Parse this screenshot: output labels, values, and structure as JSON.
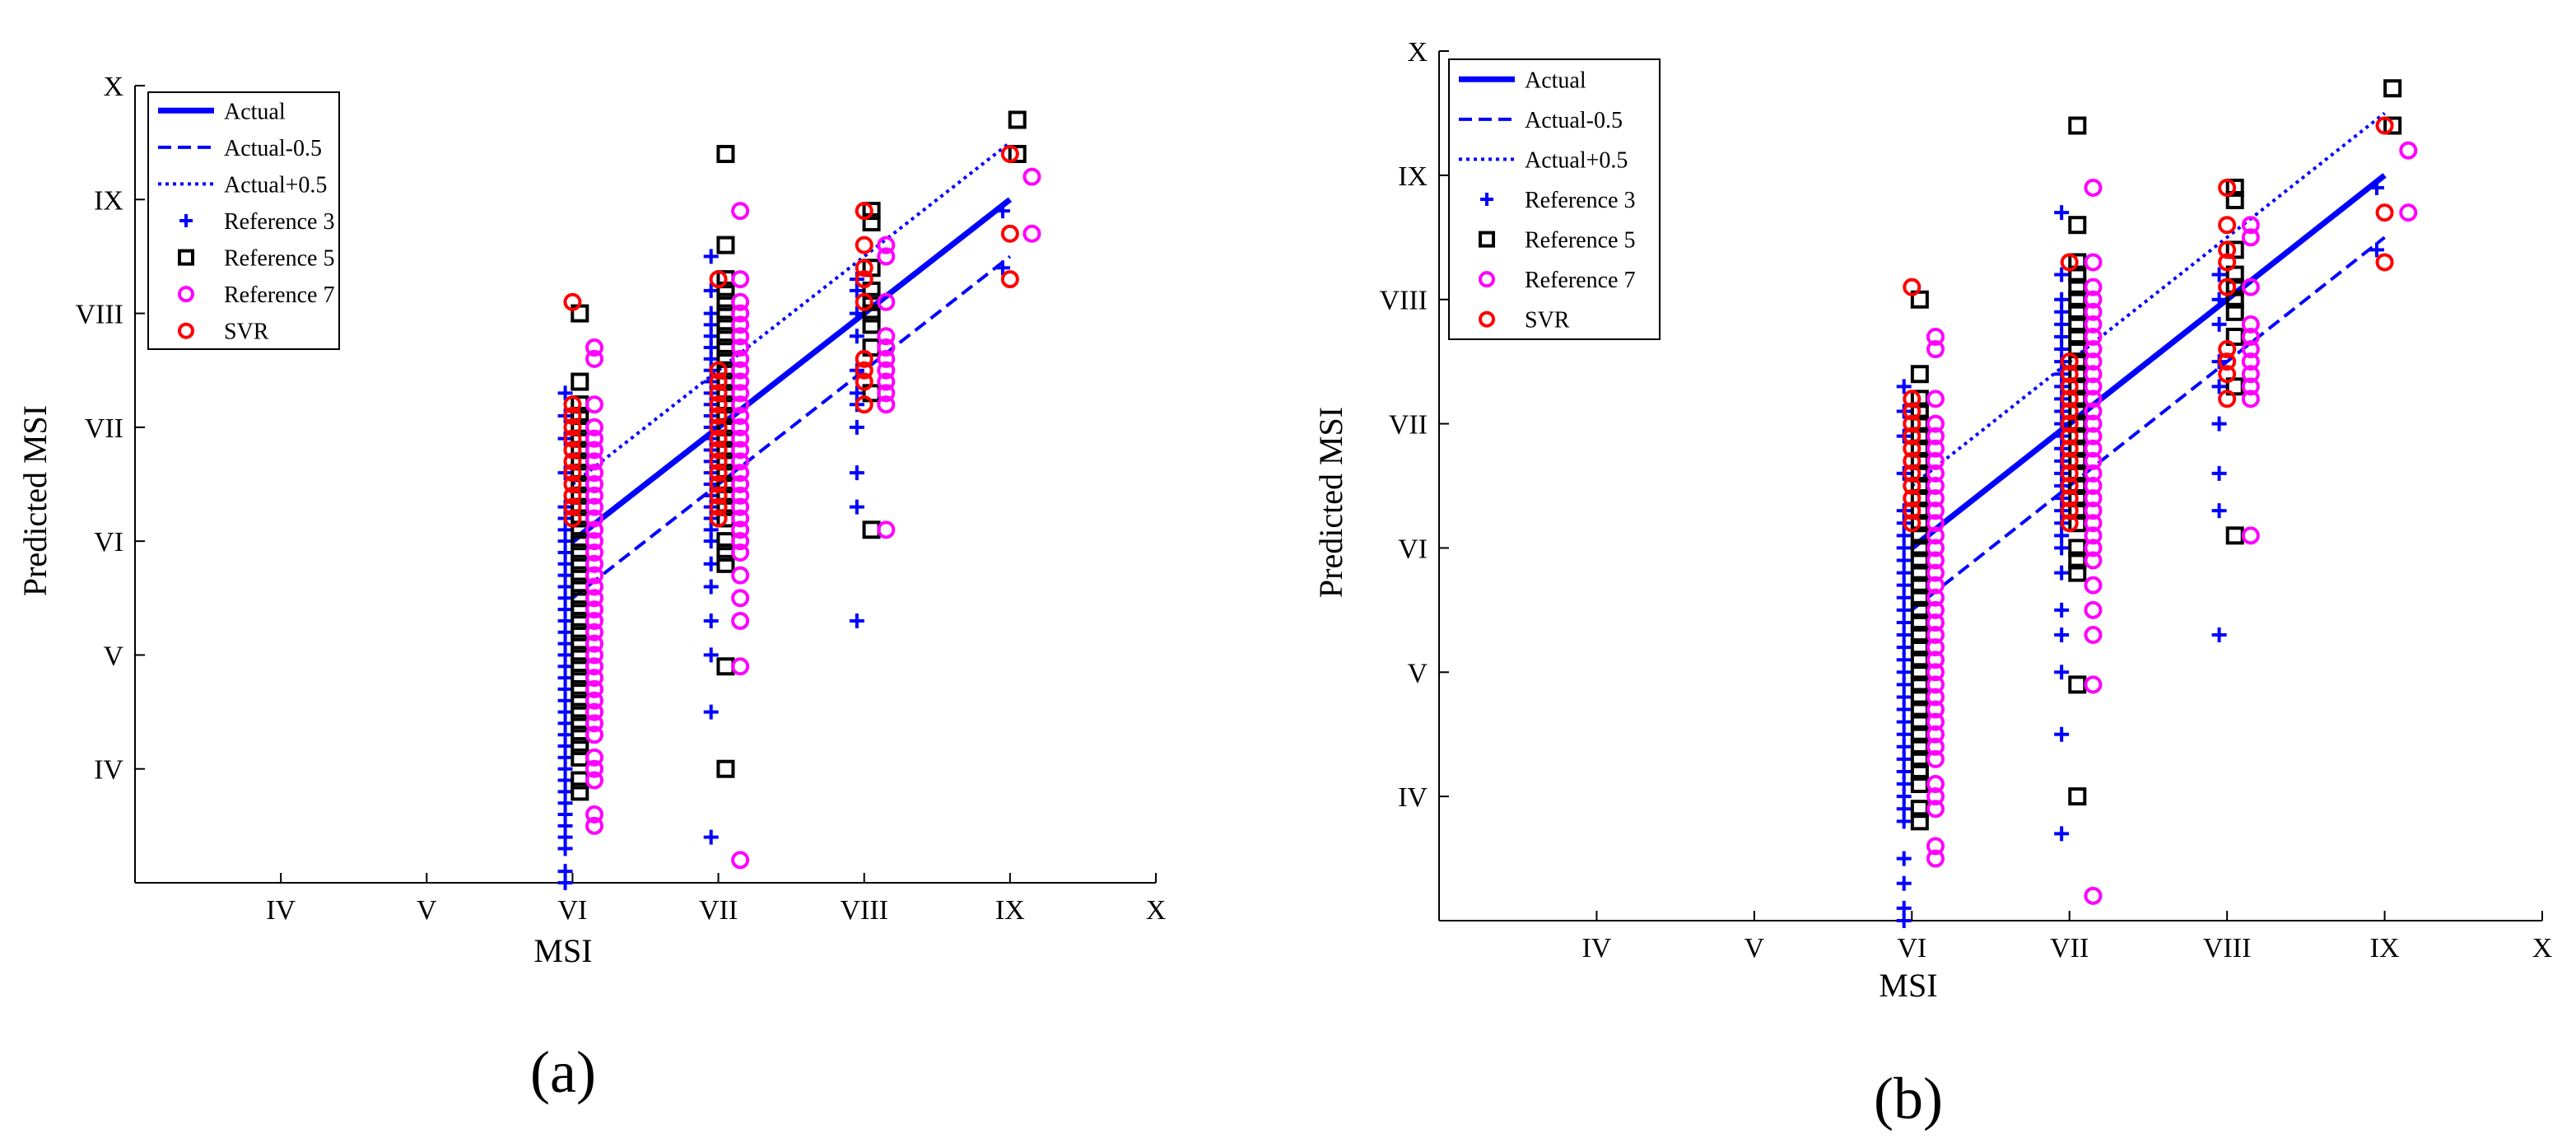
{
  "figure": {
    "panels": [
      "(a)",
      "(b)"
    ]
  },
  "colors": {
    "actual": "#0000ff",
    "ref3": "#0000ff",
    "ref5": "#000000",
    "ref7": "#ff00ff",
    "svr": "#ff0000"
  },
  "chart_data": [
    {
      "type": "scatter",
      "panel_label": "(a)",
      "xlabel": "MSI",
      "ylabel": "Predicted MSI",
      "xlim": [
        3,
        10
      ],
      "ylim": [
        3,
        10
      ],
      "ticks": [
        {
          "value": 4,
          "label": "IV"
        },
        {
          "value": 5,
          "label": "V"
        },
        {
          "value": 6,
          "label": "VI"
        },
        {
          "value": 7,
          "label": "VII"
        },
        {
          "value": 8,
          "label": "VIII"
        },
        {
          "value": 9,
          "label": "IX"
        },
        {
          "value": 10,
          "label": "X"
        }
      ],
      "legend": {
        "position": "top-left",
        "entries": [
          "Actual",
          "Actual-0.5",
          "Actual+0.5",
          "Reference 3",
          "Reference 5",
          "Reference 7",
          "SVR"
        ]
      },
      "lines": [
        {
          "name": "Actual",
          "x": [
            6,
            9
          ],
          "y": [
            6,
            9
          ],
          "style": "solid"
        },
        {
          "name": "Actual-0.5",
          "x": [
            6,
            9
          ],
          "y": [
            5.5,
            8.5
          ],
          "style": "dashed"
        },
        {
          "name": "Actual+0.5",
          "x": [
            6,
            9
          ],
          "y": [
            6.5,
            9.5
          ],
          "style": "dotted"
        }
      ],
      "series": [
        {
          "name": "Reference 3",
          "marker": "plus",
          "x_offset": -0.05,
          "groups": [
            {
              "x": 6,
              "y": [
                6.3,
                6.2,
                6.1,
                6.0,
                5.9,
                5.8,
                5.7,
                5.6,
                5.5,
                5.4,
                5.3,
                5.2,
                5.1,
                5.0,
                4.9,
                4.8,
                4.7,
                4.6,
                4.5,
                4.4,
                4.3,
                4.2,
                4.1,
                4.0,
                3.9,
                3.8,
                3.7,
                3.6,
                3.5,
                3.4,
                3.3,
                3.1,
                3.0,
                6.6,
                6.9,
                7.1,
                7.3
              ]
            },
            {
              "x": 7,
              "y": [
                7.0,
                7.1,
                7.2,
                7.3,
                7.4,
                7.5,
                7.6,
                7.7,
                7.8,
                7.9,
                8.0,
                8.2,
                8.5,
                6.9,
                6.8,
                6.7,
                6.6,
                6.5,
                6.4,
                6.3,
                6.2,
                6.1,
                6.0,
                5.8,
                5.6,
                5.3,
                5.0,
                4.5,
                3.4
              ]
            },
            {
              "x": 8,
              "y": [
                8.3,
                8.2,
                8.0,
                7.8,
                7.5,
                7.3,
                7.2,
                7.0,
                6.6,
                6.3,
                5.3
              ]
            },
            {
              "x": 9,
              "y": [
                8.9,
                8.4
              ]
            }
          ]
        },
        {
          "name": "Reference 5",
          "marker": "square",
          "x_offset": 0.05,
          "groups": [
            {
              "x": 6,
              "y": [
                8.0,
                7.4,
                7.2,
                7.1,
                7.0,
                6.9,
                6.8,
                6.7,
                6.6,
                6.5,
                6.4,
                6.3,
                6.2,
                6.1,
                6.0,
                5.9,
                5.8,
                5.7,
                5.6,
                5.5,
                5.4,
                5.3,
                5.2,
                5.1,
                5.0,
                4.9,
                4.8,
                4.7,
                4.6,
                4.5,
                4.4,
                4.3,
                4.2,
                4.1,
                3.9,
                3.8
              ]
            },
            {
              "x": 7,
              "y": [
                9.4,
                8.6,
                8.3,
                8.2,
                8.1,
                8.0,
                7.9,
                7.8,
                7.7,
                7.6,
                7.5,
                7.4,
                7.3,
                7.2,
                7.1,
                7.0,
                6.9,
                6.8,
                6.7,
                6.6,
                6.5,
                6.4,
                6.3,
                6.2,
                6.0,
                5.9,
                5.8,
                4.9,
                4.0
              ]
            },
            {
              "x": 8,
              "y": [
                8.9,
                8.8,
                8.4,
                8.2,
                8.1,
                8.0,
                7.9,
                7.7,
                7.3,
                6.1
              ]
            },
            {
              "x": 9,
              "y": [
                9.7,
                9.4
              ]
            }
          ]
        },
        {
          "name": "Reference 7",
          "marker": "circle",
          "x_offset": 0.15,
          "groups": [
            {
              "x": 6,
              "y": [
                7.7,
                7.6,
                7.2,
                7.0,
                6.9,
                6.8,
                6.7,
                6.6,
                6.5,
                6.4,
                6.3,
                6.2,
                6.1,
                6.0,
                5.9,
                5.8,
                5.7,
                5.6,
                5.5,
                5.4,
                5.3,
                5.2,
                5.1,
                5.0,
                4.9,
                4.8,
                4.7,
                4.6,
                4.5,
                4.4,
                4.3,
                4.1,
                4.0,
                3.9,
                3.6,
                3.5
              ]
            },
            {
              "x": 7,
              "y": [
                8.9,
                8.3,
                8.1,
                8.0,
                7.9,
                7.8,
                7.7,
                7.6,
                7.5,
                7.4,
                7.3,
                7.2,
                7.1,
                7.0,
                6.9,
                6.8,
                6.7,
                6.6,
                6.5,
                6.4,
                6.3,
                6.2,
                6.1,
                6.0,
                5.9,
                5.7,
                5.5,
                5.3,
                4.9,
                3.2
              ]
            },
            {
              "x": 8,
              "y": [
                8.6,
                8.5,
                8.1,
                7.8,
                7.7,
                7.6,
                7.5,
                7.4,
                7.3,
                7.2,
                6.1
              ]
            },
            {
              "x": 9,
              "y": [
                9.2,
                8.7
              ]
            }
          ]
        },
        {
          "name": "SVR",
          "marker": "circle",
          "x_offset": 0.0,
          "groups": [
            {
              "x": 6,
              "y": [
                8.1,
                7.2,
                7.1,
                7.0,
                6.9,
                6.8,
                6.7,
                6.6,
                6.5,
                6.4,
                6.3,
                6.2
              ]
            },
            {
              "x": 7,
              "y": [
                8.3,
                7.5,
                7.4,
                7.3,
                7.2,
                7.1,
                7.0,
                6.9,
                6.8,
                6.7,
                6.6,
                6.5,
                6.4,
                6.3,
                6.2
              ]
            },
            {
              "x": 8,
              "y": [
                8.9,
                8.6,
                8.4,
                8.3,
                8.1,
                7.6,
                7.5,
                7.4,
                7.2
              ]
            },
            {
              "x": 9,
              "y": [
                9.4,
                8.7,
                8.3
              ]
            }
          ]
        }
      ]
    },
    {
      "type": "scatter",
      "panel_label": "(b)",
      "xlabel": "MSI",
      "ylabel": "Predicted MSI",
      "xlim": [
        3,
        10
      ],
      "ylim": [
        3,
        10
      ],
      "ticks": [
        {
          "value": 4,
          "label": "IV"
        },
        {
          "value": 5,
          "label": "V"
        },
        {
          "value": 6,
          "label": "VI"
        },
        {
          "value": 7,
          "label": "VII"
        },
        {
          "value": 8,
          "label": "VIII"
        },
        {
          "value": 9,
          "label": "IX"
        },
        {
          "value": 10,
          "label": "X"
        }
      ],
      "legend": {
        "position": "top-left",
        "entries": [
          "Actual",
          "Actual-0.5",
          "Actual+0.5",
          "Reference 3",
          "Reference 5",
          "Reference 7",
          "SVR"
        ]
      },
      "lines": [
        {
          "name": "Actual",
          "x": [
            6,
            9
          ],
          "y": [
            6,
            9
          ],
          "style": "solid"
        },
        {
          "name": "Actual-0.5",
          "x": [
            6,
            9
          ],
          "y": [
            5.5,
            8.5
          ],
          "style": "dashed"
        },
        {
          "name": "Actual+0.5",
          "x": [
            6,
            9
          ],
          "y": [
            6.5,
            9.5
          ],
          "style": "dotted"
        }
      ],
      "series": [
        {
          "name": "Reference 3",
          "marker": "plus",
          "x_offset": -0.05,
          "groups": [
            {
              "x": 6,
              "y": [
                7.3,
                7.1,
                6.9,
                6.6,
                6.3,
                6.2,
                6.1,
                6.0,
                5.9,
                5.8,
                5.7,
                5.6,
                5.5,
                5.4,
                5.3,
                5.2,
                5.1,
                5.0,
                4.9,
                4.8,
                4.7,
                4.6,
                4.5,
                4.4,
                4.3,
                4.2,
                4.1,
                4.0,
                3.9,
                3.8,
                3.5,
                3.3,
                3.1,
                3.0
              ]
            },
            {
              "x": 7,
              "y": [
                8.7,
                8.2,
                8.0,
                7.9,
                7.8,
                7.7,
                7.6,
                7.5,
                7.4,
                7.3,
                7.2,
                7.1,
                7.0,
                6.9,
                6.8,
                6.7,
                6.6,
                6.5,
                6.4,
                6.3,
                6.2,
                6.1,
                6.0,
                5.8,
                5.5,
                5.3,
                5.0,
                4.5,
                3.7
              ]
            },
            {
              "x": 8,
              "y": [
                8.2,
                8.0,
                7.8,
                7.5,
                7.3,
                7.0,
                6.6,
                6.3,
                5.3
              ]
            },
            {
              "x": 9,
              "y": [
                8.9,
                8.4
              ]
            }
          ]
        },
        {
          "name": "Reference 5",
          "marker": "square",
          "x_offset": 0.05,
          "groups": [
            {
              "x": 6,
              "y": [
                8.0,
                7.4,
                7.2,
                7.1,
                7.0,
                6.9,
                6.8,
                6.7,
                6.6,
                6.5,
                6.4,
                6.3,
                6.2,
                6.1,
                6.0,
                5.9,
                5.8,
                5.7,
                5.6,
                5.5,
                5.4,
                5.3,
                5.2,
                5.1,
                5.0,
                4.9,
                4.8,
                4.7,
                4.6,
                4.5,
                4.4,
                4.3,
                4.2,
                4.1,
                3.9,
                3.8
              ]
            },
            {
              "x": 7,
              "y": [
                9.4,
                8.6,
                8.3,
                8.2,
                8.1,
                8.0,
                7.9,
                7.8,
                7.7,
                7.6,
                7.5,
                7.4,
                7.3,
                7.2,
                7.1,
                7.0,
                6.9,
                6.8,
                6.7,
                6.6,
                6.5,
                6.4,
                6.3,
                6.2,
                6.0,
                5.9,
                5.8,
                4.9,
                4.0
              ]
            },
            {
              "x": 8,
              "y": [
                8.9,
                8.8,
                8.4,
                8.2,
                8.1,
                8.0,
                7.9,
                7.7,
                7.3,
                6.1
              ]
            },
            {
              "x": 9,
              "y": [
                9.7,
                9.4
              ]
            }
          ]
        },
        {
          "name": "Reference 7",
          "marker": "circle",
          "x_offset": 0.15,
          "groups": [
            {
              "x": 6,
              "y": [
                7.7,
                7.6,
                7.2,
                7.0,
                6.9,
                6.8,
                6.7,
                6.6,
                6.5,
                6.4,
                6.3,
                6.2,
                6.1,
                6.0,
                5.9,
                5.8,
                5.7,
                5.6,
                5.5,
                5.4,
                5.3,
                5.2,
                5.1,
                5.0,
                4.9,
                4.8,
                4.7,
                4.6,
                4.5,
                4.4,
                4.3,
                4.1,
                4.0,
                3.9,
                3.6,
                3.5
              ]
            },
            {
              "x": 7,
              "y": [
                8.9,
                8.3,
                8.1,
                8.0,
                7.9,
                7.8,
                7.7,
                7.6,
                7.5,
                7.4,
                7.3,
                7.2,
                7.1,
                7.0,
                6.9,
                6.8,
                6.7,
                6.6,
                6.5,
                6.4,
                6.3,
                6.2,
                6.1,
                6.0,
                5.9,
                5.7,
                5.5,
                5.3,
                4.9,
                3.2
              ]
            },
            {
              "x": 8,
              "y": [
                8.6,
                8.5,
                8.1,
                7.8,
                7.7,
                7.6,
                7.5,
                7.4,
                7.3,
                7.2,
                6.1
              ]
            },
            {
              "x": 9,
              "y": [
                9.2,
                8.7
              ]
            }
          ]
        },
        {
          "name": "SVR",
          "marker": "circle",
          "x_offset": 0.0,
          "groups": [
            {
              "x": 6,
              "y": [
                8.1,
                7.2,
                7.1,
                7.0,
                6.9,
                6.8,
                6.7,
                6.6,
                6.5,
                6.4,
                6.3,
                6.2
              ]
            },
            {
              "x": 7,
              "y": [
                8.3,
                7.5,
                7.4,
                7.3,
                7.2,
                7.1,
                7.0,
                6.9,
                6.8,
                6.7,
                6.6,
                6.5,
                6.4,
                6.3,
                6.2
              ]
            },
            {
              "x": 8,
              "y": [
                8.9,
                8.6,
                8.4,
                8.3,
                8.1,
                7.6,
                7.5,
                7.4,
                7.2
              ]
            },
            {
              "x": 9,
              "y": [
                9.4,
                8.7,
                8.3
              ]
            }
          ]
        }
      ]
    }
  ]
}
